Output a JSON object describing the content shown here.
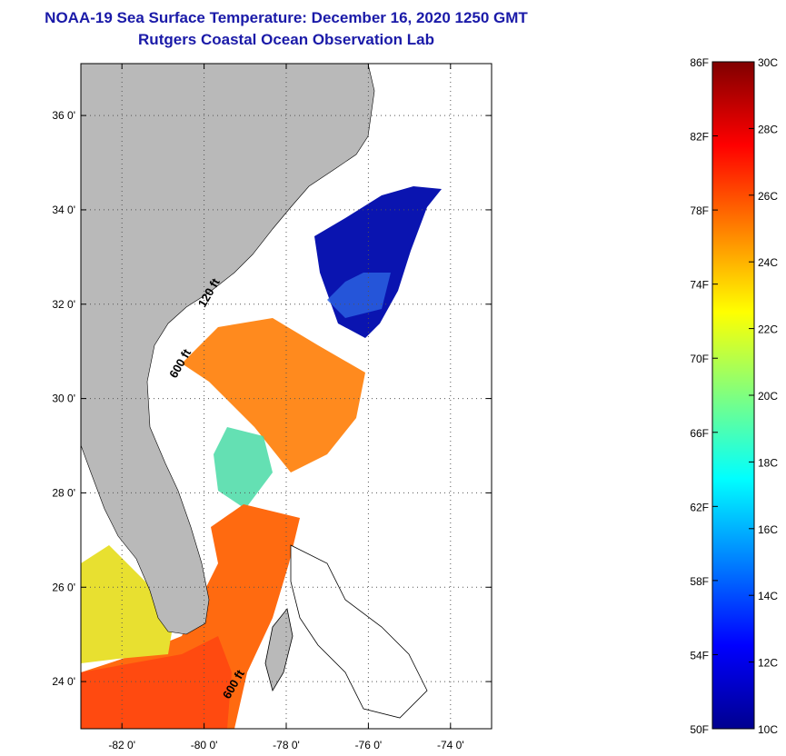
{
  "title": {
    "line1": "NOAA-19 Sea Surface Temperature:  December 16, 2020 1250 GMT",
    "line2": "Rutgers Coastal Ocean Observation Lab"
  },
  "map": {
    "lat_ticks": [
      {
        "value": 36,
        "label": "36 0'"
      },
      {
        "value": 34,
        "label": "34 0'"
      },
      {
        "value": 32,
        "label": "32 0'"
      },
      {
        "value": 30,
        "label": "30 0'"
      },
      {
        "value": 28,
        "label": "28 0'"
      },
      {
        "value": 26,
        "label": "26 0'"
      },
      {
        "value": 24,
        "label": "24 0'"
      }
    ],
    "lon_ticks": [
      {
        "value": -82,
        "label": "-82 0'"
      },
      {
        "value": -80,
        "label": "-80 0'"
      },
      {
        "value": -78,
        "label": "-78 0'"
      },
      {
        "value": -76,
        "label": "-76 0'"
      },
      {
        "value": -74,
        "label": "-74 0'"
      }
    ],
    "lat_range": [
      23,
      37.1
    ],
    "lon_range": [
      -83,
      -73
    ],
    "contour_labels": [
      {
        "text": "120 ft",
        "lon": -79.8,
        "lat": 32.2
      },
      {
        "text": "600 ft",
        "lon": -80.5,
        "lat": 30.7
      },
      {
        "text": "600 ft",
        "lon": -79.2,
        "lat": 23.9
      }
    ],
    "colors": {
      "land": "#b9b9b9",
      "cloud": "#ffffff",
      "grid": "#555555"
    }
  },
  "colorbar": {
    "f_labels": [
      "86F",
      "82F",
      "78F",
      "74F",
      "70F",
      "66F",
      "62F",
      "58F",
      "54F",
      "50F"
    ],
    "c_labels": [
      "30C",
      "28C",
      "26C",
      "24C",
      "22C",
      "20C",
      "18C",
      "16C",
      "14C",
      "12C",
      "10C"
    ],
    "range_c": [
      10,
      30
    ]
  }
}
